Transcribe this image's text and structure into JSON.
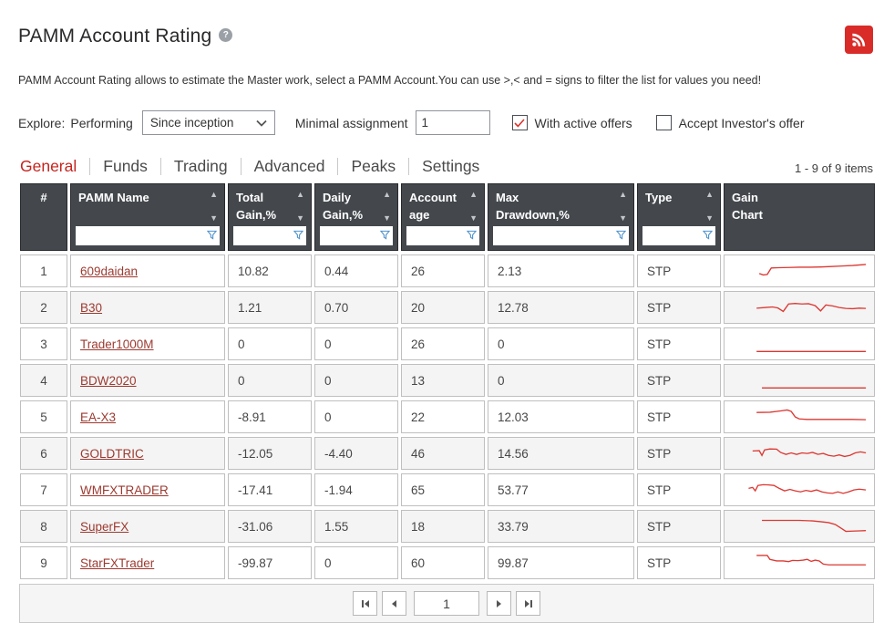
{
  "page": {
    "title": "PAMM Account Rating",
    "description": "PAMM Account Rating allows to estimate the Master work, select a PAMM Account.You can use >,< and = signs to filter the list for values you need!"
  },
  "controls": {
    "explore_label": "Explore:",
    "performing_label": "Performing",
    "period_select_value": "Since inception",
    "minimal_assignment_label": "Minimal assignment",
    "minimal_assignment_value": "1",
    "with_active_offers_label": "With active offers",
    "with_active_offers_checked": true,
    "accept_investors_offer_label": "Accept Investor's offer",
    "accept_investors_offer_checked": false
  },
  "tabs": [
    {
      "label": "General",
      "active": true
    },
    {
      "label": "Funds",
      "active": false
    },
    {
      "label": "Trading",
      "active": false
    },
    {
      "label": "Advanced",
      "active": false
    },
    {
      "label": "Peaks",
      "active": false
    },
    {
      "label": "Settings",
      "active": false
    }
  ],
  "items_count": "1 - 9 of 9 items",
  "table": {
    "columns": [
      {
        "label": "#",
        "sortable": false,
        "filterable": false
      },
      {
        "label": "PAMM Name",
        "sortable": true,
        "filterable": true
      },
      {
        "label": "Total\nGain,%",
        "sortable": true,
        "filterable": true
      },
      {
        "label": "Daily\nGain,%",
        "sortable": true,
        "filterable": true
      },
      {
        "label": "Account\nage",
        "sortable": true,
        "filterable": true
      },
      {
        "label": "Max\nDrawdown,%",
        "sortable": true,
        "filterable": true
      },
      {
        "label": "Type",
        "sortable": true,
        "filterable": true
      },
      {
        "label": "Gain\nChart",
        "sortable": false,
        "filterable": false
      }
    ],
    "rows": [
      {
        "num": "1",
        "name": "609daidan",
        "total_gain": "10.82",
        "daily_gain": "0.44",
        "age": "26",
        "max_drawdown": "2.13",
        "type": "STP",
        "spark": [
          [
            20,
            62
          ],
          [
            23,
            68
          ],
          [
            26,
            66
          ],
          [
            29,
            40
          ],
          [
            34,
            39
          ],
          [
            42,
            38
          ],
          [
            50,
            37
          ],
          [
            58,
            37
          ],
          [
            66,
            36
          ],
          [
            74,
            34
          ],
          [
            82,
            32
          ],
          [
            90,
            30
          ],
          [
            100,
            26
          ]
        ]
      },
      {
        "num": "2",
        "name": "B30",
        "total_gain": "1.21",
        "daily_gain": "0.70",
        "age": "20",
        "max_drawdown": "12.78",
        "type": "STP",
        "spark": [
          [
            18,
            55
          ],
          [
            25,
            52
          ],
          [
            30,
            50
          ],
          [
            34,
            54
          ],
          [
            38,
            68
          ],
          [
            42,
            38
          ],
          [
            47,
            36
          ],
          [
            52,
            38
          ],
          [
            57,
            37
          ],
          [
            62,
            45
          ],
          [
            66,
            66
          ],
          [
            70,
            42
          ],
          [
            75,
            46
          ],
          [
            80,
            52
          ],
          [
            85,
            56
          ],
          [
            90,
            57
          ],
          [
            95,
            55
          ],
          [
            100,
            56
          ]
        ]
      },
      {
        "num": "3",
        "name": "Trader1000M",
        "total_gain": "0",
        "daily_gain": "0",
        "age": "26",
        "max_drawdown": "0",
        "type": "STP",
        "spark": [
          [
            18,
            82
          ],
          [
            100,
            82
          ]
        ]
      },
      {
        "num": "4",
        "name": "BDW2020",
        "total_gain": "0",
        "daily_gain": "0",
        "age": "13",
        "max_drawdown": "0",
        "type": "STP",
        "spark": [
          [
            22,
            82
          ],
          [
            100,
            82
          ]
        ]
      },
      {
        "num": "5",
        "name": "EA-X3",
        "total_gain": "-8.91",
        "daily_gain": "0",
        "age": "22",
        "max_drawdown": "12.03",
        "type": "STP",
        "spark": [
          [
            18,
            34
          ],
          [
            28,
            33
          ],
          [
            36,
            28
          ],
          [
            41,
            24
          ],
          [
            44,
            30
          ],
          [
            47,
            52
          ],
          [
            50,
            60
          ],
          [
            56,
            62
          ],
          [
            64,
            62
          ],
          [
            72,
            62
          ],
          [
            80,
            62
          ],
          [
            90,
            62
          ],
          [
            100,
            63
          ]
        ]
      },
      {
        "num": "6",
        "name": "GOLDTRIC",
        "total_gain": "-12.05",
        "daily_gain": "-4.40",
        "age": "46",
        "max_drawdown": "14.56",
        "type": "STP",
        "spark": [
          [
            15,
            42
          ],
          [
            20,
            41
          ],
          [
            22,
            60
          ],
          [
            24,
            38
          ],
          [
            28,
            34
          ],
          [
            33,
            35
          ],
          [
            36,
            48
          ],
          [
            40,
            56
          ],
          [
            44,
            50
          ],
          [
            48,
            56
          ],
          [
            52,
            50
          ],
          [
            56,
            52
          ],
          [
            60,
            48
          ],
          [
            64,
            56
          ],
          [
            68,
            52
          ],
          [
            72,
            60
          ],
          [
            76,
            63
          ],
          [
            80,
            58
          ],
          [
            84,
            64
          ],
          [
            88,
            60
          ],
          [
            92,
            50
          ],
          [
            96,
            46
          ],
          [
            100,
            50
          ]
        ]
      },
      {
        "num": "7",
        "name": "WMFXTRADER",
        "total_gain": "-17.41",
        "daily_gain": "-1.94",
        "age": "65",
        "max_drawdown": "53.77",
        "type": "STP",
        "spark": [
          [
            12,
            46
          ],
          [
            15,
            42
          ],
          [
            17,
            56
          ],
          [
            19,
            34
          ],
          [
            23,
            31
          ],
          [
            27,
            32
          ],
          [
            31,
            34
          ],
          [
            35,
            46
          ],
          [
            39,
            56
          ],
          [
            43,
            50
          ],
          [
            47,
            56
          ],
          [
            51,
            60
          ],
          [
            55,
            54
          ],
          [
            59,
            58
          ],
          [
            63,
            52
          ],
          [
            67,
            60
          ],
          [
            71,
            64
          ],
          [
            75,
            66
          ],
          [
            79,
            60
          ],
          [
            83,
            66
          ],
          [
            87,
            60
          ],
          [
            91,
            52
          ],
          [
            95,
            49
          ],
          [
            100,
            52
          ]
        ]
      },
      {
        "num": "8",
        "name": "SuperFX",
        "total_gain": "-31.06",
        "daily_gain": "1.55",
        "age": "18",
        "max_drawdown": "33.79",
        "type": "STP",
        "spark": [
          [
            22,
            28
          ],
          [
            35,
            28
          ],
          [
            50,
            28
          ],
          [
            60,
            30
          ],
          [
            66,
            33
          ],
          [
            72,
            37
          ],
          [
            77,
            44
          ],
          [
            81,
            58
          ],
          [
            85,
            72
          ],
          [
            90,
            71
          ],
          [
            95,
            70
          ],
          [
            100,
            69
          ]
        ]
      },
      {
        "num": "9",
        "name": "StarFXTrader",
        "total_gain": "-99.87",
        "daily_gain": "0",
        "age": "60",
        "max_drawdown": "99.87",
        "type": "STP",
        "spark": [
          [
            18,
            22
          ],
          [
            26,
            22
          ],
          [
            28,
            38
          ],
          [
            33,
            44
          ],
          [
            38,
            44
          ],
          [
            42,
            47
          ],
          [
            45,
            42
          ],
          [
            49,
            43
          ],
          [
            53,
            41
          ],
          [
            56,
            38
          ],
          [
            59,
            46
          ],
          [
            62,
            41
          ],
          [
            65,
            44
          ],
          [
            68,
            57
          ],
          [
            72,
            60
          ],
          [
            78,
            60
          ],
          [
            85,
            60
          ],
          [
            92,
            60
          ],
          [
            100,
            60
          ]
        ]
      }
    ]
  },
  "pagination": {
    "page": "1"
  },
  "colors": {
    "accent_red": "#d92b27",
    "tab_active": "#c5231d",
    "link": "#9c3a30",
    "spark": "#dc3832",
    "header_bg": "#44484d",
    "funnel_blue": "#4f93ce"
  }
}
